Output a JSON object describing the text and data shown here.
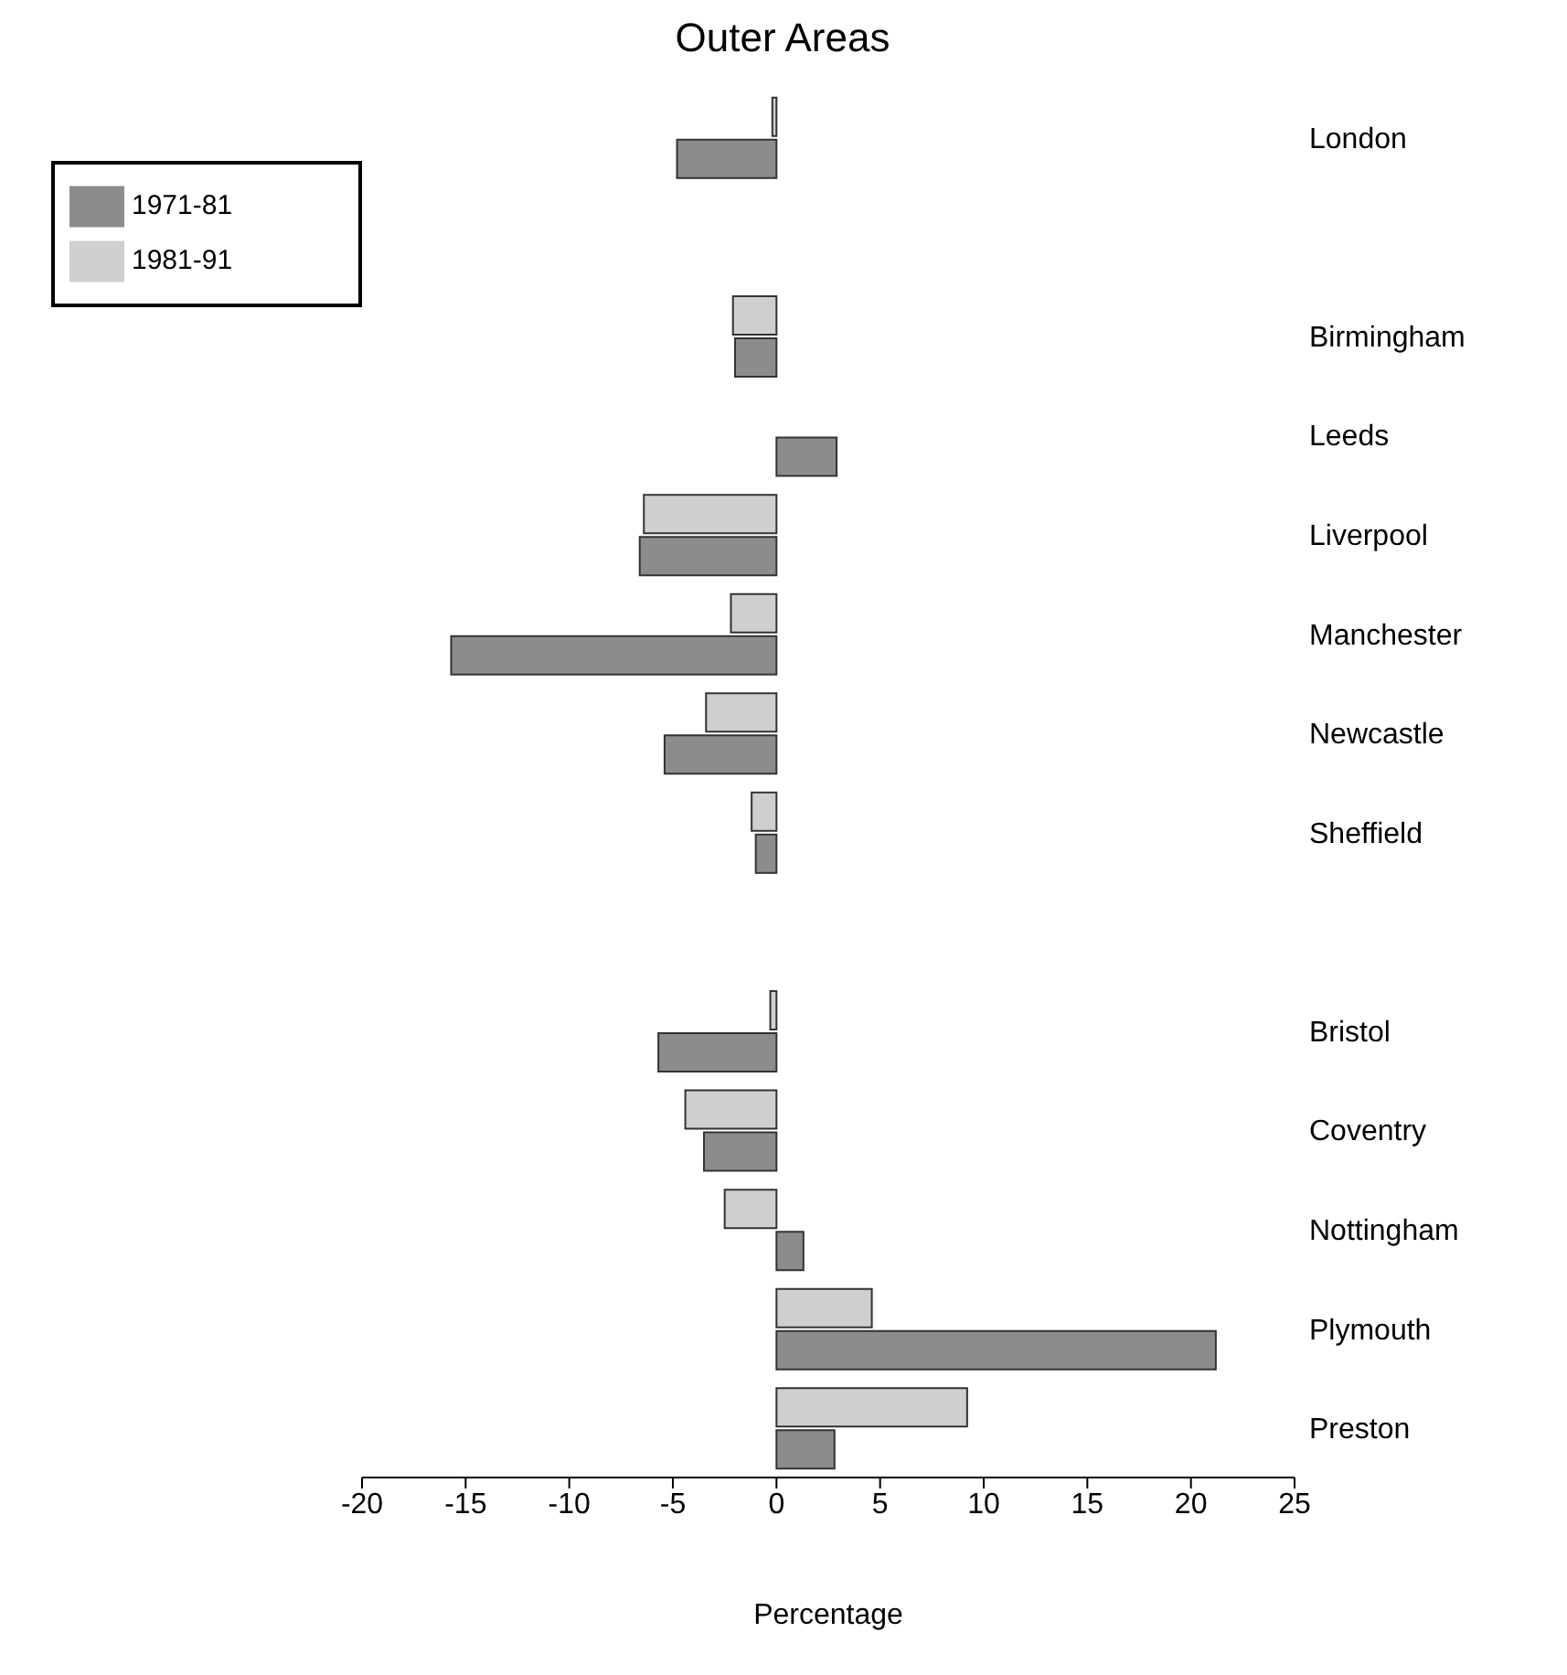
{
  "chart_data": {
    "type": "bar",
    "orientation": "horizontal",
    "title": "Outer Areas",
    "xlabel": "Percentage",
    "categories": [
      "London",
      null,
      "Birmingham",
      "Leeds",
      "Liverpool",
      "Manchester",
      "Newcastle",
      "Sheffield",
      null,
      "Bristol",
      "Coventry",
      "Nottingham",
      "Plymouth",
      "Preston"
    ],
    "series": [
      {
        "name": "1981-91",
        "color": "#cfcfcf",
        "values": [
          -0.2,
          null,
          -2.1,
          null,
          -6.4,
          -2.2,
          -3.4,
          -1.2,
          null,
          -0.3,
          -4.4,
          -2.5,
          4.6,
          9.2
        ]
      },
      {
        "name": "1971-81",
        "color": "#8c8c8c",
        "values": [
          -4.8,
          null,
          -2.0,
          2.9,
          -6.6,
          -15.7,
          -5.4,
          -1.0,
          null,
          -5.7,
          -3.5,
          1.3,
          21.2,
          2.8
        ]
      }
    ],
    "xlim": [
      -20,
      25
    ],
    "xticks": [
      -20,
      -15,
      -10,
      -5,
      0,
      5,
      10,
      15,
      20,
      25
    ],
    "grid": false,
    "legend": "top left"
  }
}
